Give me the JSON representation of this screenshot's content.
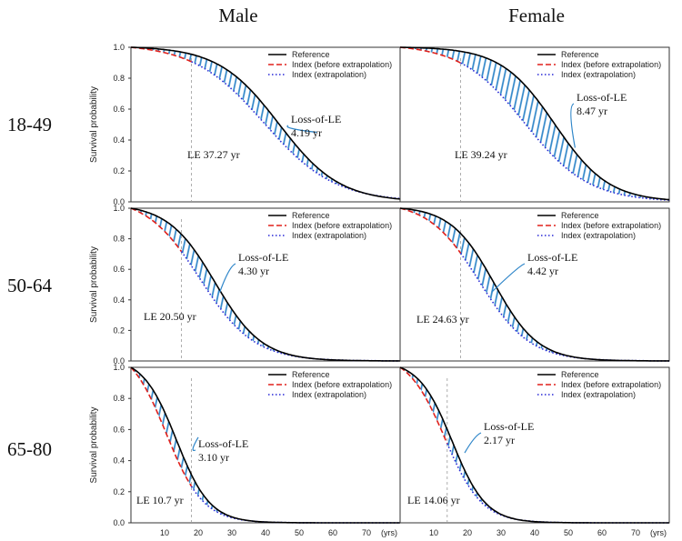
{
  "chart_data": {
    "type": "line",
    "columns": [
      "Male",
      "Female"
    ],
    "rows": [
      "18-49",
      "50-64",
      "65-80"
    ],
    "ylabel": "Survival probability",
    "x_ticks": [
      "10",
      "20",
      "30",
      "40",
      "50",
      "60",
      "70",
      "(yrs)"
    ],
    "x_tick_values": [
      10,
      20,
      30,
      40,
      50,
      60,
      70
    ],
    "y_ticks": [
      "0.0",
      "0.2",
      "0.4",
      "0.6",
      "0.8",
      "1.0"
    ],
    "xlim": [
      0,
      80
    ],
    "ylim": [
      0,
      1
    ],
    "legend": [
      "Reference",
      "Index (before extrapolation)",
      "Index (extrapolation)"
    ],
    "colors": {
      "reference": "#000000",
      "index_before": "#e0201b",
      "index_extrap": "#2929d6",
      "hatch": "#2f86c9",
      "frame": "#333333",
      "vline": "#9a9a9a"
    },
    "loss_label": "Loss-of-LE",
    "panels": [
      {
        "id": "male-18-49",
        "row": 0,
        "col": 0,
        "loss_value": "4.19 yr",
        "le_text": "LE 37.27 yr",
        "ref_median": 44.0,
        "ref_scale": 9.0,
        "idx_median": 39.5,
        "idx_scale": 10.5,
        "cutoff": 18
      },
      {
        "id": "female-18-49",
        "row": 0,
        "col": 1,
        "loss_value": "8.47 yr",
        "le_text": "LE 39.24 yr",
        "ref_median": 46.0,
        "ref_scale": 8.0,
        "idx_median": 37.0,
        "idx_scale": 9.5,
        "cutoff": 18
      },
      {
        "id": "male-50-64",
        "row": 1,
        "col": 0,
        "loss_value": "4.30 yr",
        "le_text": "LE 20.50 yr",
        "ref_median": 25.0,
        "ref_scale": 7.0,
        "idx_median": 20.5,
        "idx_scale": 8.0,
        "cutoff": 15
      },
      {
        "id": "female-50-64",
        "row": 1,
        "col": 1,
        "loss_value": "4.42 yr",
        "le_text": "LE 24.63 yr",
        "ref_median": 28.0,
        "ref_scale": 6.5,
        "idx_median": 23.5,
        "idx_scale": 7.5,
        "cutoff": 18
      },
      {
        "id": "male-65-80",
        "row": 2,
        "col": 0,
        "loss_value": "3.10 yr",
        "le_text": "LE 10.7 yr",
        "ref_median": 13.5,
        "ref_scale": 5.0,
        "idx_median": 10.5,
        "idx_scale": 5.5,
        "cutoff": 18
      },
      {
        "id": "female-65-80",
        "row": 2,
        "col": 1,
        "loss_value": "2.17 yr",
        "le_text": "LE 14.06 yr",
        "ref_median": 15.5,
        "ref_scale": 5.0,
        "idx_median": 13.3,
        "idx_scale": 5.5,
        "cutoff": 14
      }
    ]
  }
}
